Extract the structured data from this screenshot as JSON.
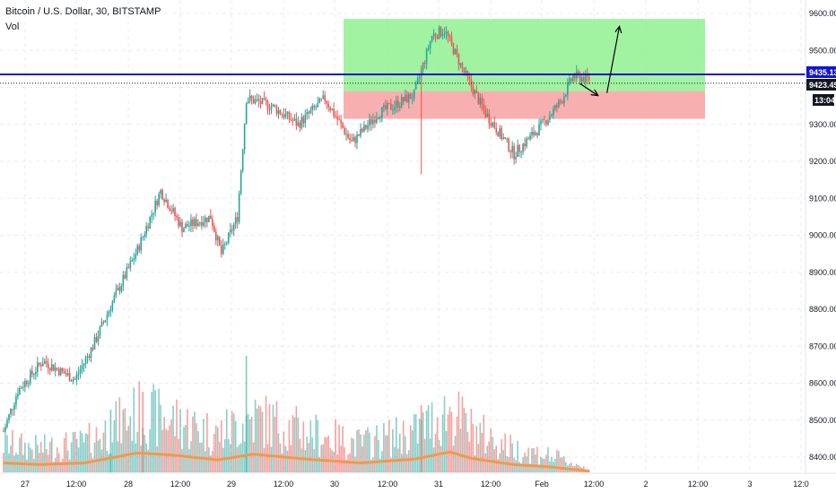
{
  "header": {
    "title": "Bitcoin / U.S. Dollar, 30, BITSTAMP",
    "indicator": "Vol"
  },
  "price_tags": {
    "resistance": "9435.13",
    "last": "9423.45",
    "countdown": "13:04"
  },
  "colors": {
    "up": "#26a69a",
    "down": "#ef5350",
    "target_zone": "#90f090",
    "stop_zone": "#f7a1a1",
    "resistance_line": "#1414d0",
    "volume_ma": "#f4984a"
  },
  "chart_data": {
    "type": "candlestick",
    "title": "Bitcoin / U.S. Dollar, 30, BITSTAMP",
    "ylim": [
      8350,
      9650
    ],
    "y_ticks": [
      "9600.00",
      "9500.00",
      "9400.00",
      "9300.00",
      "9200.00",
      "9100.00",
      "9000.00",
      "8900.00",
      "8800.00",
      "8700.00",
      "8600.00",
      "8500.00",
      "8400.00"
    ],
    "x_ticks": [
      "27",
      "12:00",
      "28",
      "12:00",
      "29",
      "12:00",
      "30",
      "12:00",
      "31",
      "12:00",
      "Feb",
      "12:00",
      "2",
      "12:00",
      "3",
      "12:0"
    ],
    "resistance_level": 9435.13,
    "last_price": 9423.45,
    "zones": [
      {
        "kind": "target",
        "from": 9390,
        "to": 9585
      },
      {
        "kind": "stop",
        "from": 9315,
        "to": 9390
      }
    ],
    "price_path": [
      {
        "t": 0,
        "p": 8470
      },
      {
        "t": 8,
        "p": 8580
      },
      {
        "t": 22,
        "p": 8660
      },
      {
        "t": 40,
        "p": 8610
      },
      {
        "t": 50,
        "p": 8700
      },
      {
        "t": 62,
        "p": 8830
      },
      {
        "t": 75,
        "p": 8960
      },
      {
        "t": 88,
        "p": 9120
      },
      {
        "t": 100,
        "p": 9020
      },
      {
        "t": 116,
        "p": 9050
      },
      {
        "t": 122,
        "p": 8950
      },
      {
        "t": 131,
        "p": 9050
      },
      {
        "t": 136,
        "p": 9370
      },
      {
        "t": 150,
        "p": 9350
      },
      {
        "t": 165,
        "p": 9300
      },
      {
        "t": 180,
        "p": 9370
      },
      {
        "t": 195,
        "p": 9250
      },
      {
        "t": 210,
        "p": 9330
      },
      {
        "t": 230,
        "p": 9380
      },
      {
        "t": 240,
        "p": 9540
      },
      {
        "t": 247,
        "p": 9555
      },
      {
        "t": 258,
        "p": 9440
      },
      {
        "t": 270,
        "p": 9330
      },
      {
        "t": 286,
        "p": 9220
      },
      {
        "t": 300,
        "p": 9290
      },
      {
        "t": 312,
        "p": 9360
      },
      {
        "t": 319,
        "p": 9430
      },
      {
        "t": 328,
        "p": 9423
      }
    ],
    "volume_ma": [
      {
        "t": 0,
        "v": 30
      },
      {
        "t": 20,
        "v": 25
      },
      {
        "t": 45,
        "v": 30
      },
      {
        "t": 75,
        "v": 62
      },
      {
        "t": 95,
        "v": 55
      },
      {
        "t": 120,
        "v": 40
      },
      {
        "t": 140,
        "v": 58
      },
      {
        "t": 170,
        "v": 42
      },
      {
        "t": 200,
        "v": 30
      },
      {
        "t": 230,
        "v": 42
      },
      {
        "t": 250,
        "v": 65
      },
      {
        "t": 262,
        "v": 45
      },
      {
        "t": 285,
        "v": 25
      },
      {
        "t": 305,
        "v": 18
      },
      {
        "t": 328,
        "v": 4
      }
    ],
    "annotations": [
      {
        "kind": "arrow",
        "points": [
          [
            323,
            9410
          ],
          [
            333,
            9378
          ]
        ]
      },
      {
        "kind": "arrow",
        "points": [
          [
            338,
            9385
          ],
          [
            345,
            9565
          ]
        ]
      }
    ],
    "grid": true
  }
}
